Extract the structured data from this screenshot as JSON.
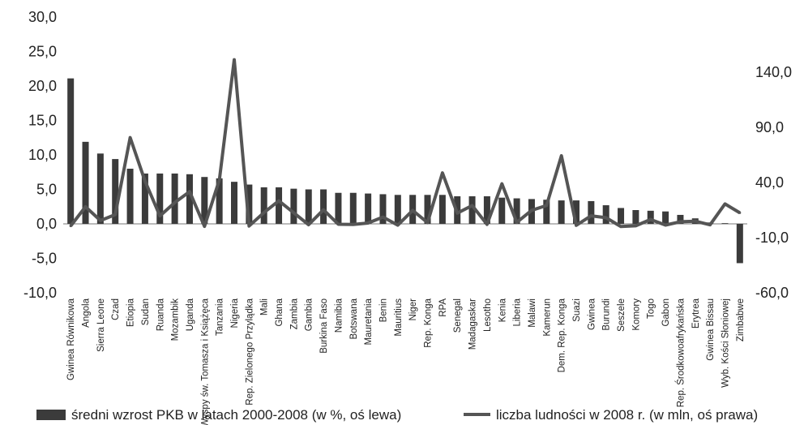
{
  "chart_data": {
    "type": "bar+line",
    "categories": [
      "Gwinea Równikowa",
      "Angola",
      "Sierra Leone",
      "Czad",
      "Etiopia",
      "Sudan",
      "Ruanda",
      "Mozambik",
      "Uganda",
      "Wyspy św. Tomasza i Książęca",
      "Tanzania",
      "Nigeria",
      "Rep. Zielonego Przylądka",
      "Mali",
      "Ghana",
      "Zambia",
      "Gambia",
      "Burkina Faso",
      "Namibia",
      "Botswana",
      "Mauretania",
      "Benin",
      "Mauritius",
      "Niger",
      "Rep. Konga",
      "RPA",
      "Senegal",
      "Madagaskar",
      "Lesotho",
      "Kenia",
      "Liberia",
      "Malawi",
      "Kamerun",
      "Dem. Rep. Konga",
      "Suazi",
      "Gwinea",
      "Burundi",
      "Seszele",
      "Komory",
      "Togo",
      "Gabon",
      "Rep. Środkowoafrykańska",
      "Erytrea",
      "Gwinea Bissau",
      "Wyb. Kości Słoniowej",
      "Zimbabwe"
    ],
    "series": [
      {
        "name": "średni wzrost PKB w latach 2000-2008 (w %, oś lewa)",
        "type": "bar",
        "axis": "left",
        "values": [
          21.1,
          11.9,
          10.2,
          9.4,
          8.0,
          7.3,
          7.3,
          7.3,
          7.2,
          6.8,
          6.6,
          6.1,
          5.7,
          5.3,
          5.3,
          5.1,
          5.0,
          5.0,
          4.5,
          4.5,
          4.4,
          4.3,
          4.2,
          4.2,
          4.2,
          4.2,
          4.0,
          4.0,
          4.0,
          3.8,
          3.7,
          3.6,
          3.5,
          3.4,
          3.4,
          3.3,
          2.7,
          2.3,
          2.0,
          1.9,
          1.8,
          1.3,
          0.8,
          0.2,
          0.1,
          -5.7
        ]
      },
      {
        "name": "liczba ludności w 2008 r. (w mln, oś prawa)",
        "type": "line",
        "axis": "right",
        "values": [
          0.6,
          18.0,
          5.5,
          10.9,
          80.7,
          41.3,
          9.7,
          21.8,
          31.7,
          0.2,
          42.5,
          151.3,
          0.5,
          12.7,
          23.4,
          12.6,
          1.7,
          15.2,
          2.1,
          1.9,
          3.2,
          8.7,
          1.3,
          14.7,
          3.6,
          48.7,
          12.2,
          19.1,
          2.0,
          38.8,
          3.8,
          14.8,
          19.1,
          64.2,
          1.2,
          9.8,
          8.1,
          0.1,
          0.7,
          6.5,
          1.4,
          4.4,
          4.9,
          1.6,
          20.6,
          12.5
        ]
      }
    ],
    "left_axis": {
      "ylim": [
        -10,
        30
      ],
      "ticks": [
        "-10,0",
        "-5,0",
        "0,0",
        "5,0",
        "10,0",
        "15,0",
        "20,0",
        "25,0",
        "30,0"
      ]
    },
    "right_axis": {
      "ylim": [
        -60,
        190
      ],
      "ticks": [
        "-60,0",
        "-10,0",
        "40,0",
        "90,0",
        "140,0"
      ]
    },
    "colors": {
      "bar": "#3b3b3b",
      "line": "#555555"
    },
    "legend_position": "bottom"
  }
}
